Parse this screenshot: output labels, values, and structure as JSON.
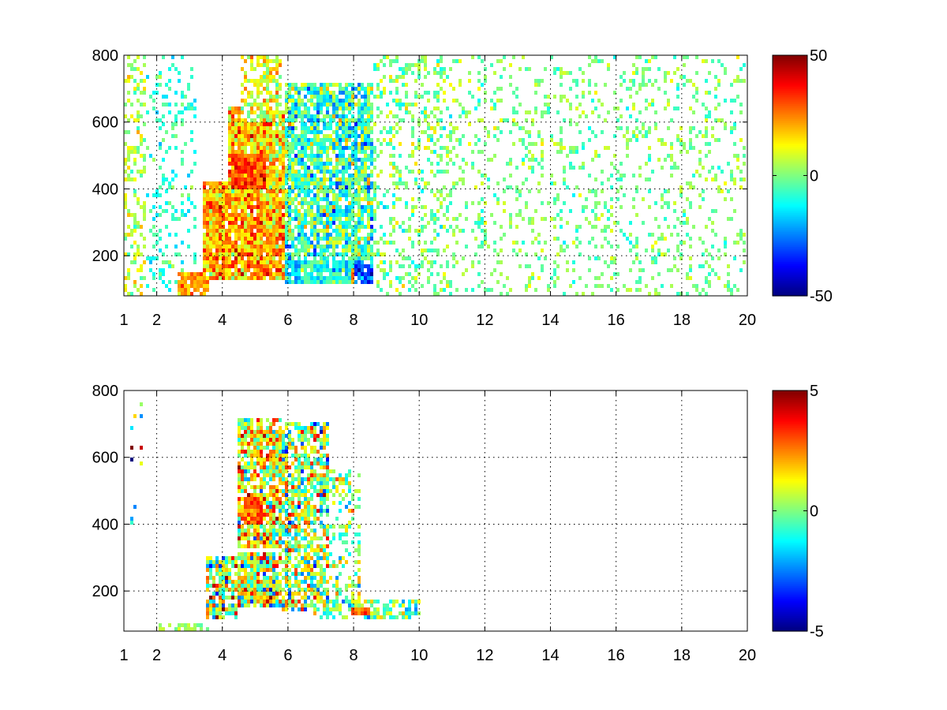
{
  "chart_data": [
    {
      "type": "heatmap",
      "x_ticks": [
        "1",
        "2",
        "4",
        "6",
        "8",
        "10",
        "12",
        "14",
        "16",
        "18",
        "20"
      ],
      "y_ticks": [
        "200",
        "400",
        "600",
        "800"
      ],
      "xlim": [
        1,
        20
      ],
      "ylim": [
        80,
        800
      ],
      "x_tick_values": [
        1,
        2,
        4,
        6,
        8,
        10,
        12,
        14,
        16,
        18,
        20
      ],
      "y_tick_values": [
        200,
        400,
        600,
        800
      ],
      "grid": true,
      "colorbar": {
        "colormap": "jet",
        "min": -50,
        "max": 50,
        "tick_labels": [
          "50",
          "0",
          "-50"
        ],
        "tick_values": [
          50,
          0,
          -50
        ]
      },
      "value_scale": 50,
      "seed": 11,
      "background_density": 0.8,
      "regions": [
        {
          "x": [
            1.0,
            1.7
          ],
          "y": [
            80,
            800
          ],
          "density": 0.35,
          "mean": 0.15,
          "spread": 0.18
        },
        {
          "x": [
            1.7,
            3.2
          ],
          "y": [
            80,
            800
          ],
          "density": 0.22,
          "mean": -0.15,
          "spread": 0.15
        },
        {
          "x": [
            2.6,
            3.6
          ],
          "y": [
            80,
            150
          ],
          "density": 0.9,
          "mean": 0.45,
          "spread": 0.15
        },
        {
          "x": [
            3.4,
            5.9
          ],
          "y": [
            130,
            420
          ],
          "density": 0.95,
          "mean": 0.42,
          "spread": 0.28
        },
        {
          "x": [
            4.2,
            5.9
          ],
          "y": [
            380,
            650
          ],
          "density": 0.95,
          "mean": 0.35,
          "spread": 0.3
        },
        {
          "x": [
            4.3,
            5.3
          ],
          "y": [
            400,
            500
          ],
          "density": 1.0,
          "mean": 0.6,
          "spread": 0.2
        },
        {
          "x": [
            4.6,
            5.8
          ],
          "y": [
            600,
            800
          ],
          "density": 0.6,
          "mean": 0.2,
          "spread": 0.25
        },
        {
          "x": [
            5.9,
            8.6
          ],
          "y": [
            110,
            720
          ],
          "density": 0.8,
          "mean": -0.12,
          "spread": 0.35
        },
        {
          "x": [
            6.0,
            10.4
          ],
          "y": [
            110,
            190
          ],
          "density": 0.9,
          "mean": -0.22,
          "spread": 0.25
        },
        {
          "x": [
            7.9,
            8.6
          ],
          "y": [
            120,
            160
          ],
          "density": 1.0,
          "mean": 0.45,
          "spread": 0.15
        },
        {
          "x": [
            8.0,
            9.6
          ],
          "y": [
            120,
            170
          ],
          "density": 0.9,
          "mean": -0.6,
          "spread": 0.2
        },
        {
          "x": [
            8.6,
            11.0
          ],
          "y": [
            80,
            800
          ],
          "density": 0.3,
          "mean": 0.0,
          "spread": 0.2
        },
        {
          "x": [
            11.0,
            20.0
          ],
          "y": [
            80,
            800
          ],
          "density": 0.18,
          "mean": 0.0,
          "spread": 0.16
        }
      ]
    },
    {
      "type": "heatmap",
      "x_ticks": [
        "1",
        "2",
        "4",
        "6",
        "8",
        "10",
        "12",
        "14",
        "16",
        "18",
        "20"
      ],
      "y_ticks": [
        "200",
        "400",
        "600",
        "800"
      ],
      "xlim": [
        1,
        20
      ],
      "ylim": [
        80,
        800
      ],
      "x_tick_values": [
        1,
        2,
        4,
        6,
        8,
        10,
        12,
        14,
        16,
        18,
        20
      ],
      "y_tick_values": [
        200,
        400,
        600,
        800
      ],
      "grid": true,
      "colorbar": {
        "colormap": "jet",
        "min": -5,
        "max": 5,
        "tick_labels": [
          "5",
          "0",
          "-5"
        ],
        "tick_values": [
          5,
          0,
          -5
        ]
      },
      "value_scale": 5,
      "seed": 29,
      "background_density": 0.0,
      "regions": [
        {
          "x": [
            1.15,
            1.55
          ],
          "y": [
            400,
            800
          ],
          "density": 0.12,
          "mean": 0.0,
          "spread": 0.9
        },
        {
          "x": [
            2.0,
            3.6
          ],
          "y": [
            80,
            100
          ],
          "density": 0.5,
          "mean": 0.05,
          "spread": 0.1
        },
        {
          "x": [
            3.5,
            4.5
          ],
          "y": [
            120,
            300
          ],
          "density": 0.75,
          "mean": 0.1,
          "spread": 0.55
        },
        {
          "x": [
            4.5,
            6.0
          ],
          "y": [
            150,
            320
          ],
          "density": 0.9,
          "mean": 0.15,
          "spread": 0.55
        },
        {
          "x": [
            4.5,
            5.8
          ],
          "y": [
            330,
            720
          ],
          "density": 0.85,
          "mean": 0.2,
          "spread": 0.45
        },
        {
          "x": [
            4.7,
            5.2
          ],
          "y": [
            400,
            480
          ],
          "density": 1.0,
          "mean": 0.6,
          "spread": 0.25
        },
        {
          "x": [
            5.8,
            7.3
          ],
          "y": [
            140,
            700
          ],
          "density": 0.7,
          "mean": 0.05,
          "spread": 0.5
        },
        {
          "x": [
            7.3,
            8.2
          ],
          "y": [
            150,
            560
          ],
          "density": 0.35,
          "mean": 0.0,
          "spread": 0.3
        },
        {
          "x": [
            6.8,
            10.0
          ],
          "y": [
            120,
            170
          ],
          "density": 0.65,
          "mean": 0.0,
          "spread": 0.35
        },
        {
          "x": [
            7.9,
            8.5
          ],
          "y": [
            125,
            155
          ],
          "density": 1.0,
          "mean": 0.55,
          "spread": 0.15
        }
      ]
    }
  ]
}
